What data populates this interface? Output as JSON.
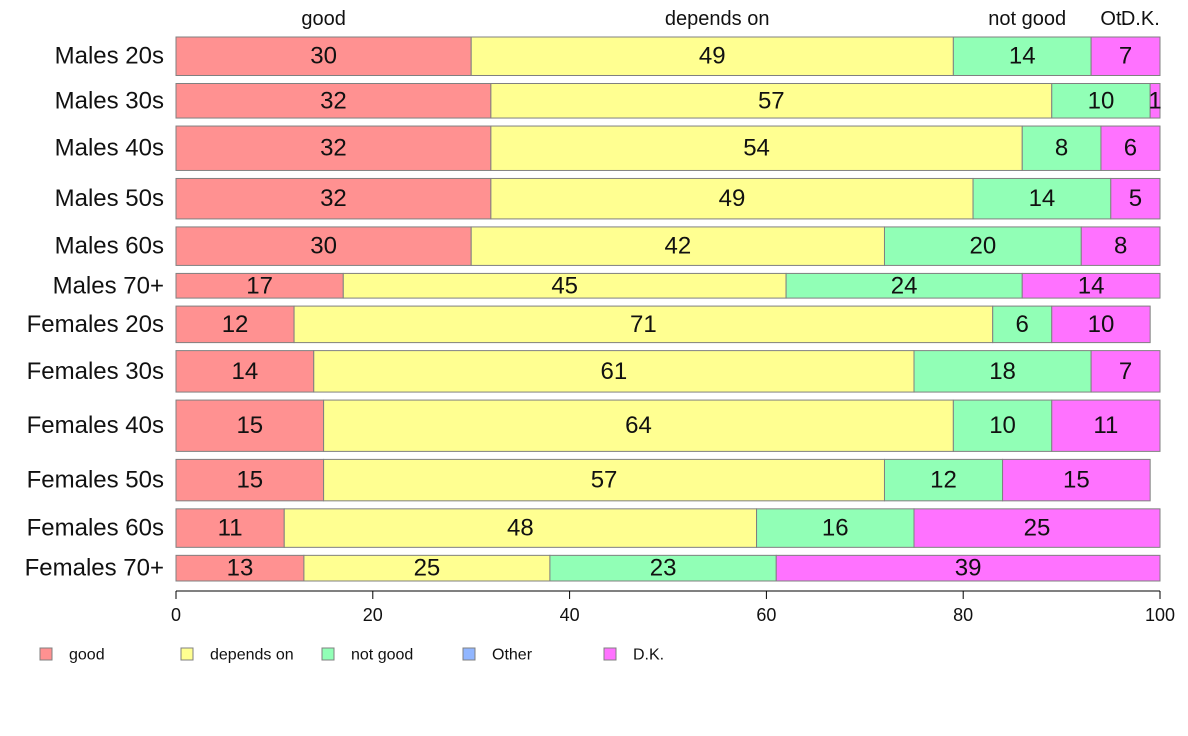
{
  "chart_data": {
    "type": "bar",
    "orientation": "horizontal",
    "stacked": true,
    "categories": [
      "Males 20s",
      "Males 30s",
      "Males 40s",
      "Males 50s",
      "Males 60s",
      "Males 70+",
      "Females 20s",
      "Females 30s",
      "Females 40s",
      "Females 50s",
      "Females 60s",
      "Females 70+"
    ],
    "row_weights": [
      39,
      35,
      45,
      41,
      39,
      25,
      37,
      42,
      52,
      42,
      39,
      26
    ],
    "series": [
      {
        "name": "good",
        "color": "#ff9191",
        "values": [
          30,
          32,
          32,
          32,
          30,
          17,
          12,
          14,
          15,
          15,
          11,
          13
        ]
      },
      {
        "name": "depends on",
        "color": "#ffff91",
        "values": [
          49,
          57,
          54,
          49,
          42,
          45,
          71,
          61,
          64,
          57,
          48,
          25
        ]
      },
      {
        "name": "not good",
        "color": "#91ffb6",
        "values": [
          14,
          10,
          8,
          14,
          20,
          24,
          6,
          18,
          10,
          12,
          16,
          23
        ]
      },
      {
        "name": "Other",
        "color": "#91b6ff",
        "values": [
          0,
          0,
          0,
          0,
          0,
          0,
          0,
          0,
          0,
          0,
          0,
          0
        ]
      },
      {
        "name": "D.K.",
        "color": "#ff72ff",
        "values": [
          7,
          1,
          6,
          5,
          8,
          14,
          10,
          7,
          11,
          15,
          25,
          39
        ]
      }
    ],
    "top_labels": [
      {
        "text": "good",
        "at": 15
      },
      {
        "text": "depends on",
        "at": 55
      },
      {
        "text": "not good",
        "at": 86.5
      },
      {
        "text": "Ot.",
        "at": 95.3
      },
      {
        "text": "D.K.",
        "at": 98
      }
    ],
    "xlim": [
      0,
      100
    ],
    "xticks": [
      0,
      20,
      40,
      60,
      80,
      100
    ],
    "grid": false,
    "legend_position": "bottom"
  }
}
